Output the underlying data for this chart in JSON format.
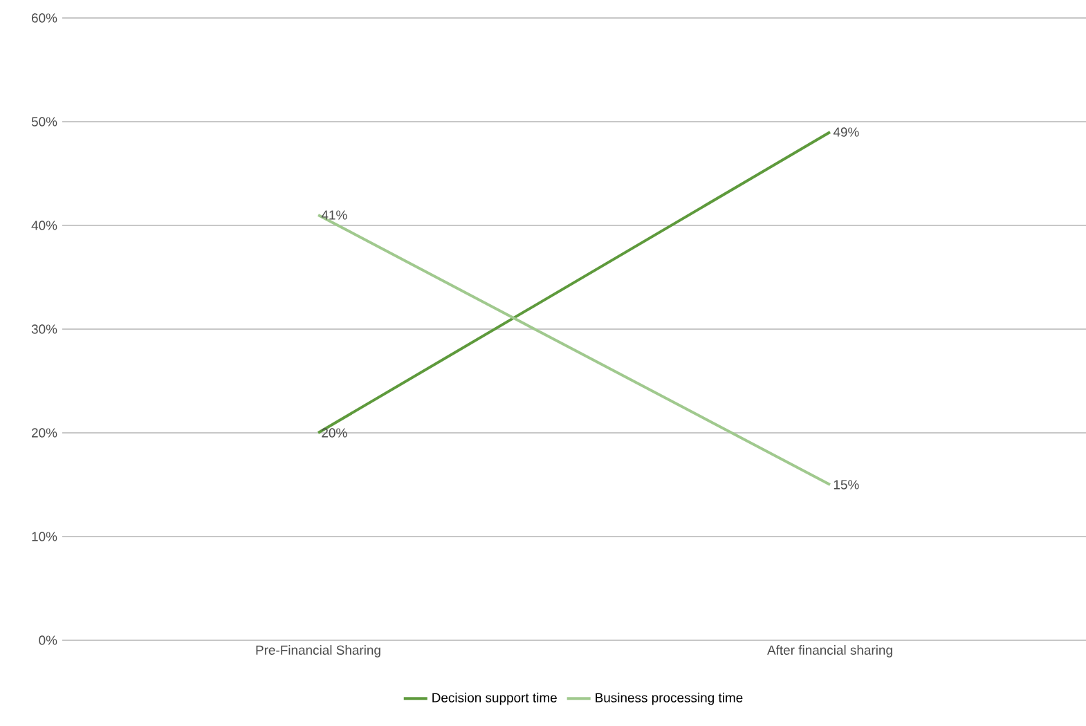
{
  "chart_data": {
    "type": "line",
    "categories": [
      "Pre-Financial Sharing",
      "After financial sharing"
    ],
    "series": [
      {
        "name": "Decision support time",
        "color": "#5e9a3c",
        "values": [
          20,
          49
        ],
        "value_labels": [
          "20%",
          "49%"
        ]
      },
      {
        "name": "Business processing time",
        "color": "#a0c98e",
        "values": [
          41,
          15
        ],
        "value_labels": [
          "41%",
          "15%"
        ]
      }
    ],
    "ylim": [
      0,
      60
    ],
    "yticks": [
      {
        "value": 0,
        "label": "0%"
      },
      {
        "value": 10,
        "label": "10%"
      },
      {
        "value": 20,
        "label": "20%"
      },
      {
        "value": 30,
        "label": "30%"
      },
      {
        "value": 40,
        "label": "40%"
      },
      {
        "value": 50,
        "label": "50%"
      },
      {
        "value": 60,
        "label": "60%"
      }
    ],
    "grid": "y",
    "legend": "bottom",
    "marker": "none",
    "line_style": "solid"
  }
}
